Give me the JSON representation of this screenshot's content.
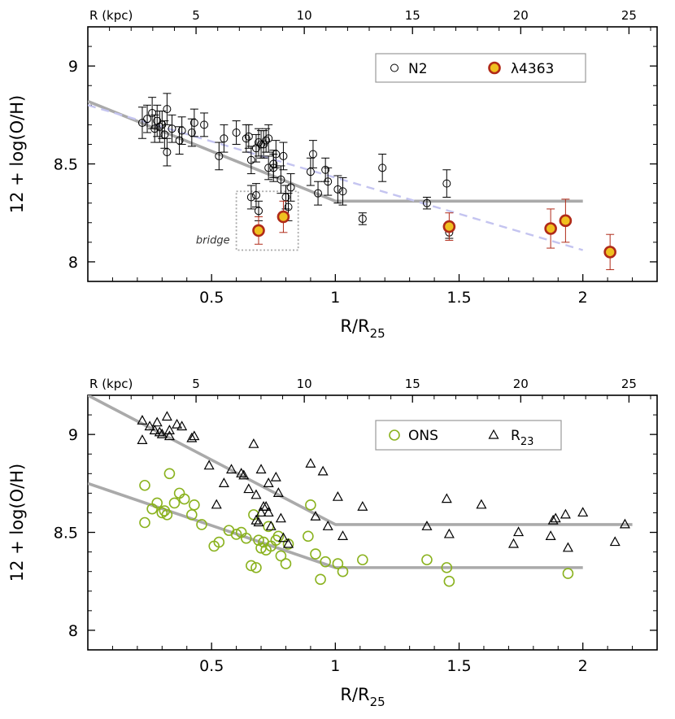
{
  "chart_data": [
    {
      "type": "scatter",
      "top_axis_label": "R (kpc)",
      "top_ticks": [
        5,
        10,
        15,
        20,
        25
      ],
      "top_range": [
        0,
        26.3
      ],
      "xlabel": "R/R",
      "xlabel_sub": "25",
      "ylabel": "12 + log(O/H)",
      "xlim": [
        0,
        2.3
      ],
      "ylim": [
        7.9,
        9.2
      ],
      "xticks": [
        0.5,
        1,
        1.5,
        2
      ],
      "xtick_labels": [
        "0.5",
        "1",
        "1.5",
        "2"
      ],
      "yticks": [
        8,
        8.5,
        9
      ],
      "ytick_labels": [
        "8",
        "8.5",
        "9"
      ],
      "legend": {
        "placement": "top-right",
        "items": [
          "N2",
          "λ4363"
        ]
      },
      "annotation": {
        "text": "bridge",
        "box_x": [
          0.6,
          0.85
        ],
        "box_y": [
          8.06,
          8.36
        ]
      },
      "series": [
        {
          "name": "N2",
          "marker": "open-circle",
          "color": "#000000",
          "points": [
            [
              0.22,
              8.71,
              0.08
            ],
            [
              0.24,
              8.73,
              0.07
            ],
            [
              0.26,
              8.76,
              0.08
            ],
            [
              0.27,
              8.68,
              0.07
            ],
            [
              0.28,
              8.72,
              0.08
            ],
            [
              0.29,
              8.69,
              0.08
            ],
            [
              0.3,
              8.7,
              0.07
            ],
            [
              0.31,
              8.65,
              0.07
            ],
            [
              0.32,
              8.78,
              0.08
            ],
            [
              0.32,
              8.56,
              0.07
            ],
            [
              0.34,
              8.68,
              0.07
            ],
            [
              0.37,
              8.62,
              0.07
            ],
            [
              0.38,
              8.67,
              0.07
            ],
            [
              0.42,
              8.66,
              0.07
            ],
            [
              0.43,
              8.71,
              0.07
            ],
            [
              0.47,
              8.7,
              0.06
            ],
            [
              0.53,
              8.54,
              0.07
            ],
            [
              0.55,
              8.63,
              0.07
            ],
            [
              0.6,
              8.66,
              0.06
            ],
            [
              0.64,
              8.63,
              0.07
            ],
            [
              0.65,
              8.64,
              0.06
            ],
            [
              0.66,
              8.52,
              0.07
            ],
            [
              0.68,
              8.58,
              0.07
            ],
            [
              0.69,
              8.61,
              0.07
            ],
            [
              0.7,
              8.6,
              0.07
            ],
            [
              0.71,
              8.6,
              0.07
            ],
            [
              0.72,
              8.62,
              0.06
            ],
            [
              0.73,
              8.63,
              0.07
            ],
            [
              0.73,
              8.48,
              0.06
            ],
            [
              0.75,
              8.5,
              0.07
            ],
            [
              0.75,
              8.48,
              0.07
            ],
            [
              0.76,
              8.55,
              0.07
            ],
            [
              0.78,
              8.42,
              0.07
            ],
            [
              0.79,
              8.54,
              0.07
            ],
            [
              0.81,
              8.28,
              0.07
            ],
            [
              0.8,
              8.33,
              0.06
            ],
            [
              0.82,
              8.38,
              0.07
            ],
            [
              0.9,
              8.46,
              0.07
            ],
            [
              0.91,
              8.55,
              0.07
            ],
            [
              0.93,
              8.35,
              0.06
            ],
            [
              0.96,
              8.47,
              0.06
            ],
            [
              0.97,
              8.41,
              0.07
            ],
            [
              1.01,
              8.37,
              0.07
            ],
            [
              1.03,
              8.36,
              0.07
            ],
            [
              1.11,
              8.22,
              0.03
            ],
            [
              1.19,
              8.48,
              0.07
            ],
            [
              1.37,
              8.3,
              0.03
            ],
            [
              1.45,
              8.4,
              0.07
            ],
            [
              1.46,
              8.15,
              0.03
            ],
            [
              0.66,
              8.33,
              0.06
            ],
            [
              0.68,
              8.34,
              0.06
            ],
            [
              0.69,
              8.26,
              0.05
            ]
          ]
        },
        {
          "name": "λ4363",
          "marker": "filled-circle",
          "color": "#f0c020",
          "edge": "#b02a18",
          "points": [
            [
              0.69,
              8.16,
              0.07
            ],
            [
              0.79,
              8.23,
              0.08
            ],
            [
              1.46,
              8.18,
              0.07
            ],
            [
              1.87,
              8.17,
              0.1
            ],
            [
              1.93,
              8.21,
              0.11
            ],
            [
              2.11,
              8.05,
              0.09
            ]
          ]
        }
      ],
      "fits": [
        {
          "style": "solid-gray",
          "points": [
            [
              0,
              8.82
            ],
            [
              1.0,
              8.31
            ],
            [
              2.0,
              8.31
            ]
          ]
        },
        {
          "style": "dashed-lavender",
          "points": [
            [
              0,
              8.8
            ],
            [
              2.0,
              8.06
            ]
          ]
        }
      ]
    },
    {
      "type": "scatter",
      "top_axis_label": "R (kpc)",
      "top_ticks": [
        5,
        10,
        15,
        20,
        25
      ],
      "top_range": [
        0,
        26.3
      ],
      "xlabel": "R/R",
      "xlabel_sub": "25",
      "ylabel": "12 + log(O/H)",
      "xlim": [
        0,
        2.3
      ],
      "ylim": [
        7.9,
        9.2
      ],
      "xticks": [
        0.5,
        1,
        1.5,
        2
      ],
      "xtick_labels": [
        "0.5",
        "1",
        "1.5",
        "2"
      ],
      "yticks": [
        8,
        8.5,
        9
      ],
      "ytick_labels": [
        "8",
        "8.5",
        "9"
      ],
      "legend": {
        "placement": "top-right",
        "items": [
          "ONS",
          "R",
          "23"
        ]
      },
      "series": [
        {
          "name": "ONS",
          "marker": "open-circle-large",
          "color": "#8ab21e",
          "points": [
            [
              0.23,
              8.74
            ],
            [
              0.23,
              8.55
            ],
            [
              0.26,
              8.62
            ],
            [
              0.28,
              8.65
            ],
            [
              0.3,
              8.6
            ],
            [
              0.31,
              8.61
            ],
            [
              0.32,
              8.59
            ],
            [
              0.33,
              8.8
            ],
            [
              0.35,
              8.65
            ],
            [
              0.37,
              8.7
            ],
            [
              0.39,
              8.67
            ],
            [
              0.42,
              8.59
            ],
            [
              0.43,
              8.64
            ],
            [
              0.46,
              8.54
            ],
            [
              0.51,
              8.43
            ],
            [
              0.53,
              8.45
            ],
            [
              0.57,
              8.51
            ],
            [
              0.6,
              8.49
            ],
            [
              0.62,
              8.5
            ],
            [
              0.64,
              8.47
            ],
            [
              0.66,
              8.33
            ],
            [
              0.67,
              8.59
            ],
            [
              0.68,
              8.32
            ],
            [
              0.69,
              8.46
            ],
            [
              0.7,
              8.42
            ],
            [
              0.71,
              8.45
            ],
            [
              0.72,
              8.41
            ],
            [
              0.73,
              8.53
            ],
            [
              0.74,
              8.43
            ],
            [
              0.76,
              8.46
            ],
            [
              0.77,
              8.48
            ],
            [
              0.78,
              8.38
            ],
            [
              0.8,
              8.34
            ],
            [
              0.81,
              8.44
            ],
            [
              0.89,
              8.48
            ],
            [
              0.9,
              8.64
            ],
            [
              0.92,
              8.39
            ],
            [
              0.94,
              8.26
            ],
            [
              0.96,
              8.35
            ],
            [
              1.01,
              8.34
            ],
            [
              1.03,
              8.3
            ],
            [
              1.11,
              8.36
            ],
            [
              1.37,
              8.36
            ],
            [
              1.45,
              8.32
            ],
            [
              1.46,
              8.25
            ],
            [
              1.94,
              8.29
            ]
          ]
        },
        {
          "name": "R23",
          "marker": "open-triangle",
          "color": "#000000",
          "points": [
            [
              0.22,
              9.07
            ],
            [
              0.22,
              8.97
            ],
            [
              0.25,
              9.04
            ],
            [
              0.27,
              9.02
            ],
            [
              0.28,
              9.06
            ],
            [
              0.29,
              9.01
            ],
            [
              0.3,
              9.0
            ],
            [
              0.32,
              9.09
            ],
            [
              0.33,
              8.99
            ],
            [
              0.33,
              9.02
            ],
            [
              0.36,
              9.05
            ],
            [
              0.38,
              9.04
            ],
            [
              0.42,
              8.98
            ],
            [
              0.43,
              8.99
            ],
            [
              0.49,
              8.84
            ],
            [
              0.52,
              8.64
            ],
            [
              0.55,
              8.75
            ],
            [
              0.58,
              8.82
            ],
            [
              0.62,
              8.8
            ],
            [
              0.63,
              8.79
            ],
            [
              0.65,
              8.72
            ],
            [
              0.67,
              8.95
            ],
            [
              0.68,
              8.56
            ],
            [
              0.68,
              8.69
            ],
            [
              0.69,
              8.55
            ],
            [
              0.7,
              8.82
            ],
            [
              0.7,
              8.6
            ],
            [
              0.71,
              8.63
            ],
            [
              0.72,
              8.63
            ],
            [
              0.73,
              8.6
            ],
            [
              0.73,
              8.75
            ],
            [
              0.74,
              8.53
            ],
            [
              0.76,
              8.78
            ],
            [
              0.77,
              8.7
            ],
            [
              0.78,
              8.57
            ],
            [
              0.79,
              8.47
            ],
            [
              0.81,
              8.44
            ],
            [
              0.9,
              8.85
            ],
            [
              0.92,
              8.58
            ],
            [
              0.95,
              8.81
            ],
            [
              0.97,
              8.53
            ],
            [
              1.01,
              8.68
            ],
            [
              1.03,
              8.48
            ],
            [
              1.11,
              8.63
            ],
            [
              1.37,
              8.53
            ],
            [
              1.45,
              8.67
            ],
            [
              1.46,
              8.49
            ],
            [
              1.59,
              8.64
            ],
            [
              1.72,
              8.44
            ],
            [
              1.74,
              8.5
            ],
            [
              1.87,
              8.48
            ],
            [
              1.88,
              8.56
            ],
            [
              1.89,
              8.57
            ],
            [
              1.93,
              8.59
            ],
            [
              1.94,
              8.42
            ],
            [
              2.0,
              8.6
            ],
            [
              2.13,
              8.45
            ],
            [
              2.17,
              8.54
            ]
          ]
        }
      ],
      "fits": [
        {
          "style": "solid-gray",
          "points": [
            [
              0,
              9.2
            ],
            [
              1.0,
              8.54
            ],
            [
              2.2,
              8.54
            ]
          ]
        },
        {
          "style": "solid-gray",
          "points": [
            [
              0,
              8.75
            ],
            [
              1.0,
              8.32
            ],
            [
              2.0,
              8.32
            ]
          ]
        }
      ]
    }
  ]
}
